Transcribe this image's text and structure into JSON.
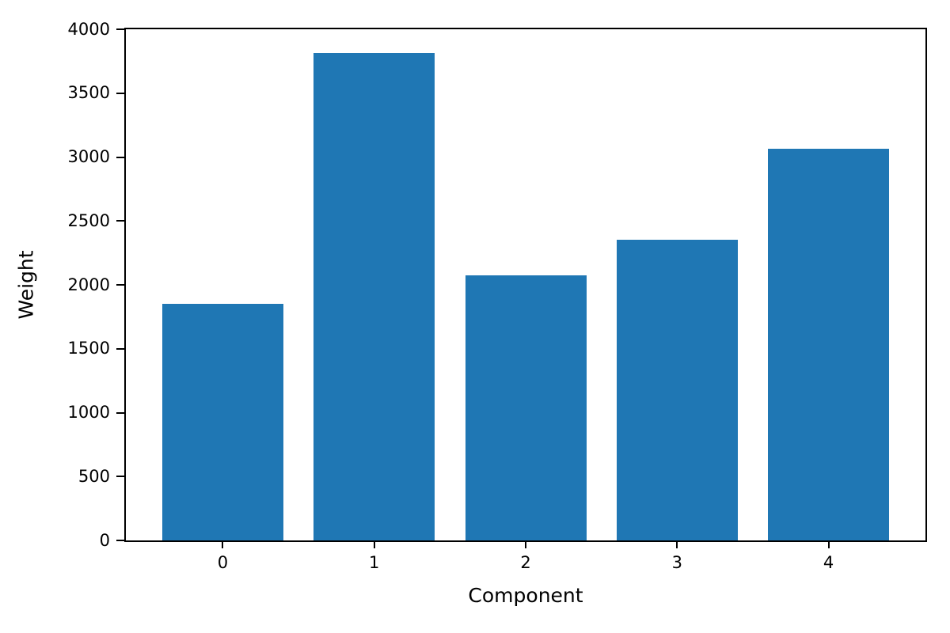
{
  "chart_data": {
    "type": "bar",
    "title": "",
    "xlabel": "Component",
    "ylabel": "Weight",
    "categories": [
      "0",
      "1",
      "2",
      "3",
      "4"
    ],
    "values": [
      1853,
      3816,
      2075,
      2354,
      3068
    ],
    "ylim": [
      0,
      4000
    ],
    "yticks": [
      0,
      500,
      1000,
      1500,
      2000,
      2500,
      3000,
      3500,
      4000
    ],
    "bar_color": "#1f77b4",
    "axis_color": "#000000",
    "background_color": "#ffffff",
    "grid": false,
    "legend": "none"
  }
}
